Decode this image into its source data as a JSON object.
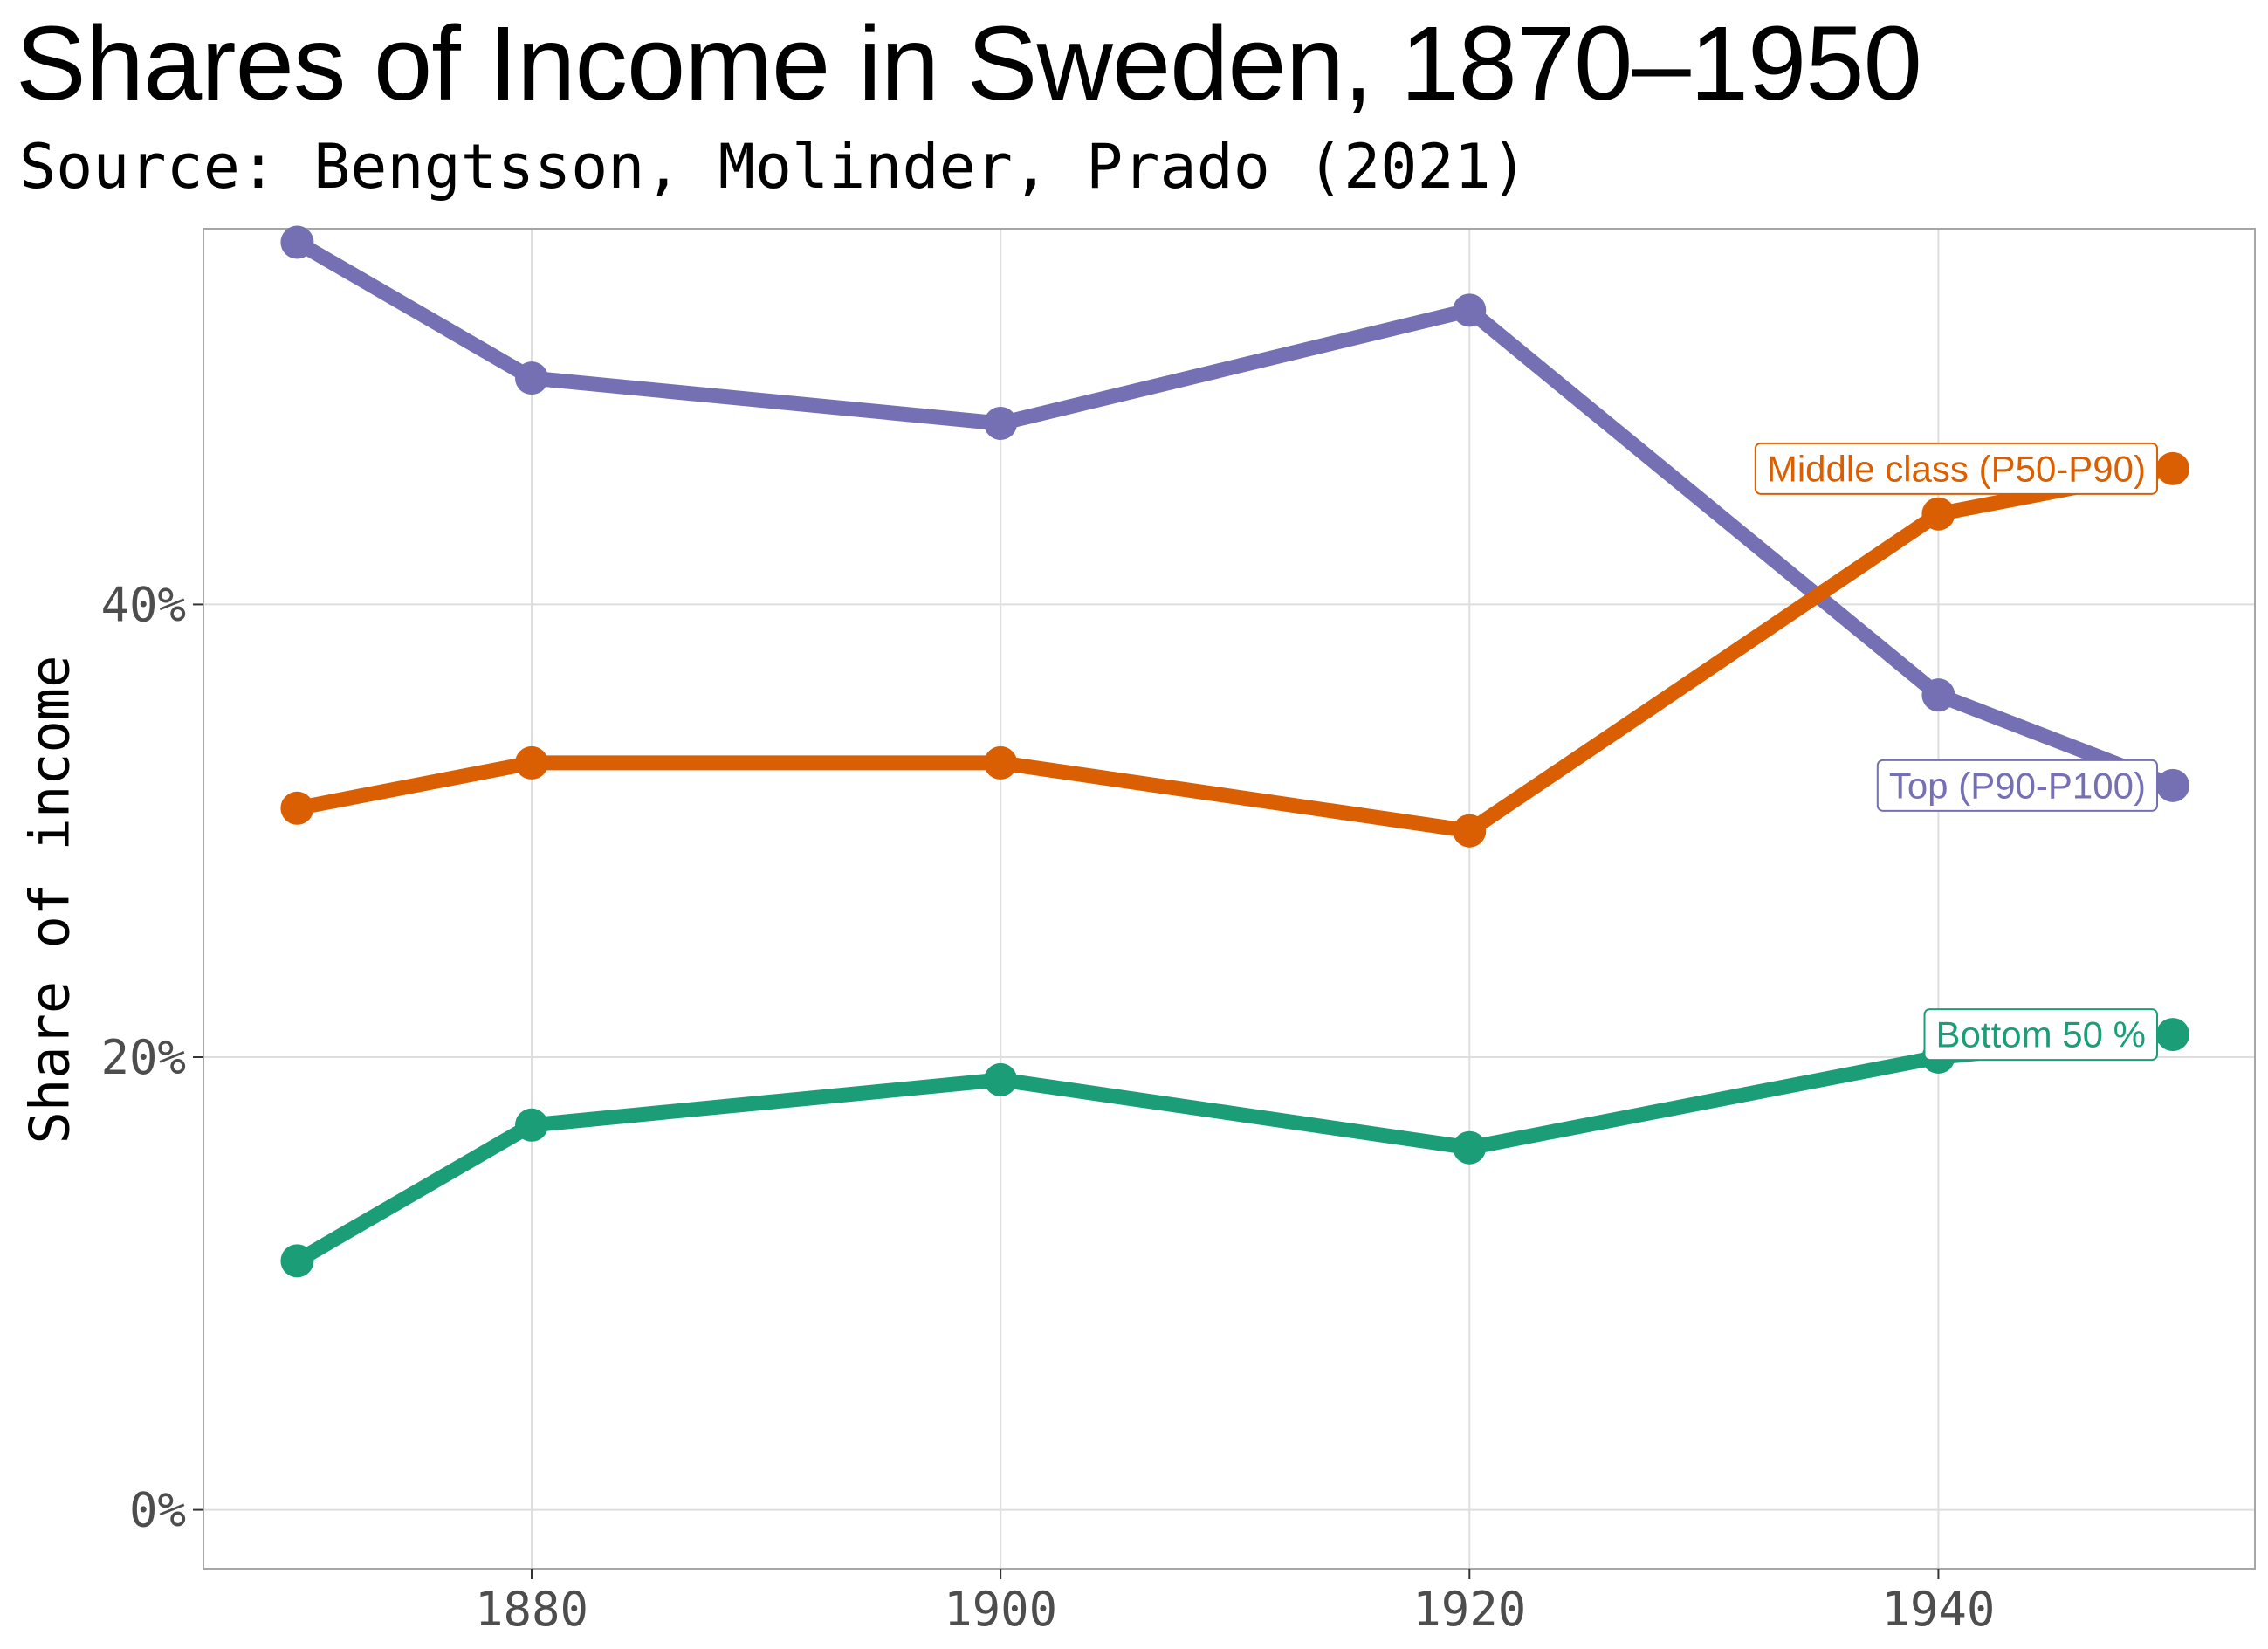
{
  "title": "Shares of Income in Sweden, 1870–1950",
  "subtitle": "Source: Bengtsson, Molinder, Prado (2021)",
  "chart_data": {
    "type": "line",
    "title": "Shares of Income in Sweden, 1870–1950",
    "subtitle": "Source: Bengtsson, Molinder, Prado (2021)",
    "xlabel": "",
    "ylabel": "Share of income",
    "x": [
      1870,
      1880,
      1900,
      1920,
      1940,
      1950
    ],
    "xlim": [
      1866,
      1953.5
    ],
    "ylim": [
      -2.6,
      56.6
    ],
    "x_ticks": [
      1880,
      1900,
      1920,
      1940
    ],
    "x_tick_labels": [
      "1880",
      "1900",
      "1920",
      "1940"
    ],
    "y_ticks": [
      0,
      20,
      40
    ],
    "y_tick_labels": [
      "0%",
      "20%",
      "40%"
    ],
    "grid": true,
    "legend": "direct labels at line ends",
    "series": [
      {
        "name": "Top (P90-P100)",
        "color": "#7570b3",
        "values": [
          56,
          50,
          48,
          53,
          36,
          32
        ]
      },
      {
        "name": "Middle class (P50-P90)",
        "color": "#d95f02",
        "values": [
          31,
          33,
          33,
          30,
          44,
          46
        ]
      },
      {
        "name": "Bottom 50 %",
        "color": "#1b9e77",
        "values": [
          11,
          17,
          19,
          16,
          20,
          21
        ]
      }
    ]
  }
}
